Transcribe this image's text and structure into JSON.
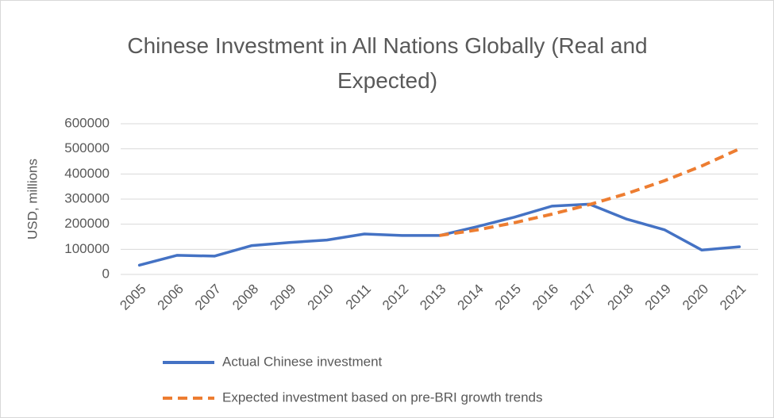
{
  "chart_data": {
    "type": "line",
    "title": "Chinese Investment in All Nations Globally (Real and Expected)",
    "y_label": "USD, millions",
    "categories": [
      "2005",
      "2006",
      "2007",
      "2008",
      "2009",
      "2010",
      "2011",
      "2012",
      "2013",
      "2014",
      "2015",
      "2016",
      "2017",
      "2018",
      "2019",
      "2020",
      "2021"
    ],
    "series": [
      {
        "name": "Actual Chinese investment",
        "color": "#4472c4",
        "dashed": false,
        "values": [
          37000,
          76000,
          73000,
          115000,
          127000,
          137000,
          161000,
          155000,
          155000,
          190000,
          228000,
          272000,
          280000,
          220000,
          178000,
          97000,
          110000
        ]
      },
      {
        "name": "Expected investment based on pre-BRI growth trends",
        "color": "#ed7d31",
        "dashed": true,
        "values": [
          null,
          null,
          null,
          null,
          null,
          null,
          null,
          null,
          155000,
          177000,
          206000,
          240000,
          278000,
          322000,
          373000,
          432000,
          500000
        ]
      }
    ],
    "ylim": [
      0,
      600000
    ],
    "yticks": [
      0,
      100000,
      200000,
      300000,
      400000,
      500000,
      600000
    ],
    "grid": true,
    "legend": "bottom"
  }
}
